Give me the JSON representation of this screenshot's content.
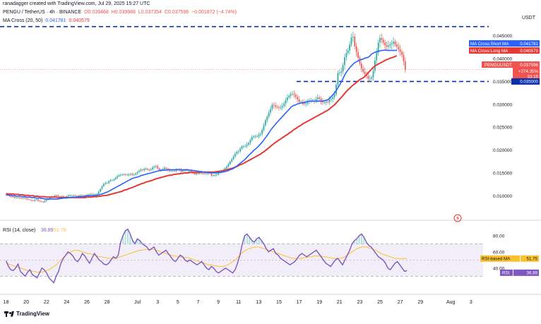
{
  "header": {
    "created_by": "ranadagger created with TradingView.com, Jul 29, 2025 15:27 UTC",
    "symbol": "PENGU / TetherUS · 4h · BINANCE",
    "ohlc": {
      "o": "O0.039468",
      "h": "H0.039988",
      "l": "L0.037354",
      "c": "C0.037596",
      "chg": "−0.001872 (−4.74%)"
    },
    "ma_label": "MA Cross (20, 50)",
    "ma_short_value": "0.041781",
    "ma_long_value": "0.040579",
    "currency": "USDT"
  },
  "labels": {
    "ma_short": "MA Cross:Short MA",
    "ma_long": "MA Cross:Long MA",
    "ma_short_value": "0.041781",
    "ma_long_value": "0.040579",
    "ticker": "PENGUUSDT",
    "price": "0.037596",
    "change": "+274.35%",
    "countdown": "33:15",
    "support": "0.035000",
    "rsi_header": "RSI (14, close)",
    "rsi_value": "36.89",
    "rsi_ma_value": "51.75",
    "rsi_ma_label": "RSI-based MA",
    "rsi_label": "RSI",
    "watermark": "TradingView"
  },
  "colors": {
    "up": "#26a69a",
    "down": "#ef5350",
    "ma_short": "#2962ff",
    "ma_long": "#e53935",
    "rsi": "#7e57c2",
    "rsi_ma": "#fbc02d",
    "level": "#0b2fa8"
  },
  "chart_data": [
    {
      "type": "candlestick",
      "title": "PENGU / TetherUS · 4h · BINANCE",
      "ylim": [
        0.0065,
        0.0485
      ],
      "y_ticks": [
        "0.045000",
        "0.040000",
        "0.035000",
        "0.030000",
        "0.025000",
        "0.020000",
        "0.015000",
        "0.010000"
      ],
      "y_tick_values": [
        0.045,
        0.04,
        0.035,
        0.03,
        0.025,
        0.02,
        0.015,
        0.01
      ],
      "x_ticks": [
        "18",
        "20",
        "22",
        "24",
        "26",
        "28",
        "Jul",
        "3",
        "5",
        "7",
        "9",
        "11",
        "13",
        "15",
        "17",
        "19",
        "21",
        "23",
        "25",
        "27",
        "29",
        "Aug",
        "3"
      ],
      "x_tick_days": [
        0,
        2,
        4,
        6,
        8,
        10,
        13,
        15,
        17,
        19,
        21,
        23,
        25,
        27,
        29,
        31,
        33,
        35,
        37,
        39,
        41,
        44,
        46
      ],
      "x_range_days": [
        -0.6,
        47.2
      ],
      "candles_per_day": 6,
      "closes": [
        0.0102,
        0.0101,
        0.0099,
        0.0098,
        0.0097,
        0.0096,
        0.0096,
        0.0096,
        0.0095,
        0.0094,
        0.0095,
        0.0094,
        0.0093,
        0.0092,
        0.0091,
        0.009,
        0.0089,
        0.0091,
        0.0092,
        0.0089,
        0.0088,
        0.0087,
        0.0086,
        0.0089,
        0.0091,
        0.0093,
        0.0096,
        0.0098,
        0.0099,
        0.0101,
        0.01,
        0.0099,
        0.0099,
        0.0099,
        0.0098,
        0.0098,
        0.0099,
        0.0101,
        0.0101,
        0.0101,
        0.0101,
        0.01,
        0.0099,
        0.01,
        0.0101,
        0.0101,
        0.01,
        0.0101,
        0.0102,
        0.0103,
        0.0104,
        0.0103,
        0.0103,
        0.0103,
        0.0104,
        0.0109,
        0.0115,
        0.0121,
        0.0126,
        0.0128,
        0.0128,
        0.0132,
        0.0134,
        0.0134,
        0.0136,
        0.0139,
        0.0143,
        0.0145,
        0.0146,
        0.0146,
        0.0147,
        0.0146,
        0.0146,
        0.0146,
        0.0148,
        0.0146,
        0.0146,
        0.0149,
        0.0152,
        0.0155,
        0.0157,
        0.0156,
        0.0159,
        0.0159,
        0.0157,
        0.0156,
        0.0158,
        0.0162,
        0.0164,
        0.0165,
        0.016,
        0.0156,
        0.0157,
        0.0158,
        0.0161,
        0.0159,
        0.0157,
        0.0154,
        0.0155,
        0.0155,
        0.0154,
        0.0157,
        0.0158,
        0.0157,
        0.0153,
        0.0156,
        0.0156,
        0.0155,
        0.0155,
        0.0155,
        0.0153,
        0.015,
        0.0147,
        0.0149,
        0.0149,
        0.015,
        0.0149,
        0.015,
        0.0148,
        0.0148,
        0.015,
        0.0149,
        0.0144,
        0.0145,
        0.0145,
        0.0146,
        0.0151,
        0.0151,
        0.0154,
        0.0156,
        0.016,
        0.0164,
        0.0169,
        0.0175,
        0.018,
        0.0186,
        0.0192,
        0.0196,
        0.0197,
        0.0203,
        0.0208,
        0.0208,
        0.0209,
        0.0212,
        0.0216,
        0.0222,
        0.0228,
        0.023,
        0.023,
        0.023,
        0.0233,
        0.0235,
        0.0244,
        0.0254,
        0.0265,
        0.0273,
        0.0282,
        0.029,
        0.0299,
        0.0298,
        0.0295,
        0.0294,
        0.0292,
        0.0293,
        0.0296,
        0.0302,
        0.0309,
        0.0315,
        0.0319,
        0.0322,
        0.0323,
        0.0321,
        0.0316,
        0.0311,
        0.0305,
        0.0306,
        0.0304,
        0.0301,
        0.0302,
        0.0307,
        0.0308,
        0.0308,
        0.0308,
        0.0307,
        0.0311,
        0.0315,
        0.0312,
        0.0307,
        0.0304,
        0.0304,
        0.0306,
        0.0305,
        0.031,
        0.0312,
        0.0316,
        0.0322,
        0.0343,
        0.0368,
        0.0369,
        0.0372,
        0.0386,
        0.0403,
        0.0412,
        0.0418,
        0.0431,
        0.0446,
        0.0448,
        0.0427,
        0.0414,
        0.0402,
        0.0389,
        0.0378,
        0.0371,
        0.0367,
        0.0362,
        0.0356,
        0.0356,
        0.0359,
        0.0373,
        0.0396,
        0.0413,
        0.0435,
        0.0445,
        0.0441,
        0.0435,
        0.0429,
        0.0426,
        0.0429,
        0.0431,
        0.0433,
        0.0437,
        0.0431,
        0.0426,
        0.042,
        0.0415,
        0.0408,
        0.0394,
        0.0376
      ],
      "ma_short": [
        0.0102,
        0.0102,
        0.0101,
        0.0101,
        0.01,
        0.01,
        0.0099,
        0.0099,
        0.0099,
        0.0098,
        0.0098,
        0.0098,
        0.0097,
        0.0097,
        0.0097,
        0.0096,
        0.0096,
        0.0096,
        0.0095,
        0.0095,
        0.0095,
        0.0094,
        0.0094,
        0.0093,
        0.0093,
        0.0093,
        0.0093,
        0.0093,
        0.0093,
        0.0093,
        0.0093,
        0.0093,
        0.0094,
        0.0094,
        0.0095,
        0.0095,
        0.0095,
        0.0096,
        0.0096,
        0.0097,
        0.0097,
        0.0097,
        0.0097,
        0.0098,
        0.0098,
        0.0098,
        0.0098,
        0.0099,
        0.01,
        0.01,
        0.01,
        0.01,
        0.01,
        0.0101,
        0.0101,
        0.0102,
        0.0103,
        0.0104,
        0.0105,
        0.0107,
        0.0108,
        0.011,
        0.0112,
        0.0114,
        0.0116,
        0.0118,
        0.012,
        0.0122,
        0.0124,
        0.0126,
        0.0128,
        0.013,
        0.0132,
        0.0134,
        0.0136,
        0.0138,
        0.0139,
        0.014,
        0.0141,
        0.0142,
        0.0144,
        0.0145,
        0.0146,
        0.0147,
        0.0148,
        0.0149,
        0.015,
        0.0151,
        0.0152,
        0.0153,
        0.0154,
        0.0155,
        0.0155,
        0.0156,
        0.0156,
        0.0156,
        0.0157,
        0.0157,
        0.0157,
        0.0157,
        0.0157,
        0.0157,
        0.0157,
        0.0157,
        0.0157,
        0.0157,
        0.0157,
        0.0157,
        0.0157,
        0.0156,
        0.0156,
        0.0155,
        0.0155,
        0.0154,
        0.0154,
        0.0153,
        0.0153,
        0.0152,
        0.0152,
        0.0151,
        0.0151,
        0.0151,
        0.015,
        0.015,
        0.015,
        0.015,
        0.0151,
        0.0151,
        0.0152,
        0.0152,
        0.0153,
        0.0154,
        0.0155,
        0.0157,
        0.0158,
        0.016,
        0.0162,
        0.0165,
        0.0168,
        0.0171,
        0.0174,
        0.0177,
        0.018,
        0.0184,
        0.0188,
        0.0192,
        0.0195,
        0.0199,
        0.0202,
        0.0205,
        0.0209,
        0.0213,
        0.0217,
        0.0222,
        0.0227,
        0.0232,
        0.0237,
        0.0243,
        0.0248,
        0.0252,
        0.0257,
        0.0261,
        0.0265,
        0.0269,
        0.0273,
        0.0277,
        0.0281,
        0.0285,
        0.0289,
        0.0293,
        0.0296,
        0.0298,
        0.0299,
        0.0301,
        0.0302,
        0.0303,
        0.0303,
        0.0304,
        0.0305,
        0.0306,
        0.0307,
        0.0307,
        0.0307,
        0.0307,
        0.0307,
        0.0307,
        0.0307,
        0.0307,
        0.0307,
        0.0308,
        0.0309,
        0.031,
        0.0313,
        0.0317,
        0.0321,
        0.0325,
        0.033,
        0.0336,
        0.0342,
        0.0349,
        0.0356,
        0.0364,
        0.037,
        0.0375,
        0.038,
        0.0384,
        0.0388,
        0.0391,
        0.0393,
        0.0395,
        0.0397,
        0.0398,
        0.0399,
        0.0401,
        0.0402,
        0.0403,
        0.0406,
        0.041,
        0.0412,
        0.0414,
        0.0415,
        0.0416,
        0.0417,
        0.0418,
        0.0418,
        0.0419,
        0.0418,
        0.0418,
        0.0418,
        0.0418,
        0.0418,
        0.0418,
        0.0418
      ],
      "ma_long": [
        0.0105,
        0.0104,
        0.0104,
        0.0104,
        0.0104,
        0.0103,
        0.0103,
        0.0103,
        0.0102,
        0.0102,
        0.0102,
        0.0101,
        0.0101,
        0.0101,
        0.01,
        0.01,
        0.01,
        0.0099,
        0.0099,
        0.0099,
        0.0098,
        0.0098,
        0.0098,
        0.0098,
        0.0097,
        0.0097,
        0.0097,
        0.0097,
        0.0097,
        0.0097,
        0.0097,
        0.0096,
        0.0096,
        0.0096,
        0.0096,
        0.0096,
        0.0096,
        0.0096,
        0.0096,
        0.0096,
        0.0096,
        0.0096,
        0.0096,
        0.0096,
        0.0096,
        0.0096,
        0.0096,
        0.0096,
        0.0097,
        0.0097,
        0.0097,
        0.0097,
        0.0098,
        0.0098,
        0.0098,
        0.0099,
        0.0099,
        0.01,
        0.01,
        0.0101,
        0.0101,
        0.0102,
        0.0103,
        0.0104,
        0.0105,
        0.0106,
        0.0107,
        0.0108,
        0.0109,
        0.011,
        0.0112,
        0.0113,
        0.0114,
        0.0116,
        0.0117,
        0.0118,
        0.012,
        0.0121,
        0.0123,
        0.0124,
        0.0126,
        0.0127,
        0.0128,
        0.013,
        0.0131,
        0.0132,
        0.0133,
        0.0134,
        0.0136,
        0.0137,
        0.0138,
        0.0139,
        0.014,
        0.0141,
        0.0142,
        0.0143,
        0.0144,
        0.0145,
        0.0145,
        0.0146,
        0.0147,
        0.0147,
        0.0148,
        0.0148,
        0.0149,
        0.0149,
        0.015,
        0.015,
        0.015,
        0.0151,
        0.0151,
        0.0151,
        0.0151,
        0.0151,
        0.0151,
        0.0151,
        0.0152,
        0.0152,
        0.0152,
        0.0152,
        0.0152,
        0.0152,
        0.0152,
        0.0152,
        0.0152,
        0.0153,
        0.0153,
        0.0154,
        0.0154,
        0.0155,
        0.0156,
        0.0157,
        0.0158,
        0.0159,
        0.016,
        0.0161,
        0.0163,
        0.0164,
        0.0166,
        0.0168,
        0.0169,
        0.0171,
        0.0173,
        0.0175,
        0.0177,
        0.0179,
        0.0181,
        0.0183,
        0.0185,
        0.0187,
        0.0189,
        0.0191,
        0.0194,
        0.0196,
        0.0199,
        0.0202,
        0.0205,
        0.0208,
        0.0211,
        0.0214,
        0.0217,
        0.0219,
        0.0222,
        0.0224,
        0.0227,
        0.0229,
        0.0232,
        0.0234,
        0.0237,
        0.0239,
        0.0242,
        0.0245,
        0.0247,
        0.025,
        0.0252,
        0.0254,
        0.0257,
        0.0259,
        0.0261,
        0.0263,
        0.0265,
        0.0267,
        0.0269,
        0.0271,
        0.0273,
        0.0275,
        0.0277,
        0.0279,
        0.0281,
        0.0283,
        0.0285,
        0.0287,
        0.029,
        0.0293,
        0.0296,
        0.0299,
        0.0303,
        0.0307,
        0.0311,
        0.0315,
        0.0319,
        0.0324,
        0.0328,
        0.0332,
        0.0335,
        0.0339,
        0.0342,
        0.0345,
        0.0348,
        0.0351,
        0.0354,
        0.0356,
        0.0358,
        0.0361,
        0.0365,
        0.0369,
        0.0373,
        0.0377,
        0.0381,
        0.0384,
        0.0386,
        0.0388,
        0.039,
        0.0392,
        0.0394,
        0.0396,
        0.0398,
        0.0399,
        0.0401,
        0.0402,
        0.0403,
        0.0405,
        0.0406
      ],
      "last_price": 0.037596,
      "support_level": 0.035,
      "resistance_level": 0.047,
      "series": [
        {
          "name": "MA Cross:Short MA",
          "last": 0.041781
        },
        {
          "name": "MA Cross:Long MA",
          "last": 0.040579
        }
      ]
    },
    {
      "type": "line",
      "title": "RSI (14, close)",
      "ylim": [
        12,
        92
      ],
      "y_ticks": [
        "80.00",
        "60.00",
        "40.00"
      ],
      "y_tick_values": [
        80,
        60,
        40
      ],
      "band": [
        30,
        70
      ],
      "rsi": [
        49,
        42,
        38,
        37,
        40,
        45,
        36,
        33,
        30,
        35,
        38,
        32,
        30,
        28,
        34,
        40,
        38,
        34,
        28,
        25,
        22,
        30,
        36,
        46,
        52,
        56,
        60,
        58,
        55,
        50,
        48,
        52,
        58,
        55,
        50,
        46,
        52,
        58,
        54,
        50,
        48,
        45,
        44,
        46,
        50,
        54,
        52,
        56,
        72,
        80,
        86,
        88,
        82,
        74,
        70,
        76,
        74,
        70,
        68,
        66,
        62,
        64,
        66,
        60,
        56,
        58,
        60,
        62,
        58,
        54,
        50,
        48,
        52,
        56,
        54,
        50,
        48,
        50,
        48,
        46,
        44,
        46,
        48,
        44,
        40,
        38,
        42,
        40,
        36,
        34,
        36,
        38,
        40,
        38,
        36,
        34,
        38,
        46,
        56,
        70,
        80,
        82,
        78,
        74,
        72,
        76,
        78,
        74,
        70,
        64,
        60,
        62,
        64,
        58,
        56,
        52,
        50,
        48,
        46,
        44,
        46,
        48,
        52,
        56,
        58,
        56,
        54,
        56,
        58,
        60,
        62,
        58,
        54,
        50,
        46,
        44,
        42,
        46,
        50,
        52,
        48,
        44,
        50,
        56,
        62,
        70,
        74,
        76,
        80,
        82,
        78,
        72,
        68,
        66,
        62,
        58,
        54,
        52,
        50,
        46,
        40,
        38,
        42,
        46,
        48,
        44,
        40,
        36,
        36.89
      ],
      "rsi_ma": [
        46,
        45,
        44,
        43,
        42,
        41,
        40,
        39,
        38,
        37,
        37,
        36,
        36,
        35,
        35,
        35,
        36,
        37,
        38,
        40,
        42,
        44,
        47,
        50,
        53,
        56,
        58,
        60,
        61,
        62,
        62,
        61,
        60,
        59,
        58,
        58,
        57,
        56,
        55,
        54,
        54,
        53,
        53,
        52,
        52,
        52,
        52,
        53,
        54,
        55,
        56,
        57,
        58,
        59,
        60,
        61,
        62,
        62,
        63,
        63,
        63,
        63,
        63,
        62,
        61,
        60,
        59,
        58,
        57,
        56,
        55,
        55,
        54,
        54,
        53,
        53,
        53,
        52,
        51,
        50,
        49,
        48,
        47,
        46,
        45,
        44,
        44,
        43,
        43,
        42,
        42,
        42,
        43,
        44,
        46,
        48,
        50,
        53,
        56,
        59,
        61,
        63,
        64,
        65,
        66,
        66,
        66,
        65,
        64,
        63,
        62,
        61,
        60,
        59,
        58,
        57,
        56,
        55,
        54,
        53,
        52,
        52,
        52,
        52,
        52,
        53,
        53,
        54,
        54,
        55,
        55,
        55,
        55,
        54,
        54,
        53,
        53,
        52,
        52,
        52,
        52,
        53,
        54,
        56,
        58,
        60,
        62,
        64,
        65,
        66,
        66,
        66,
        65,
        64,
        63,
        62,
        60,
        58,
        57,
        56,
        55,
        54,
        53,
        52,
        52,
        51.75,
        51.75,
        51.75,
        51.75
      ],
      "current_rsi": 36.89,
      "current_rsi_ma": 51.75,
      "series": [
        {
          "name": "RSI",
          "last": 36.89
        },
        {
          "name": "RSI-based MA",
          "last": 51.75
        }
      ]
    }
  ]
}
